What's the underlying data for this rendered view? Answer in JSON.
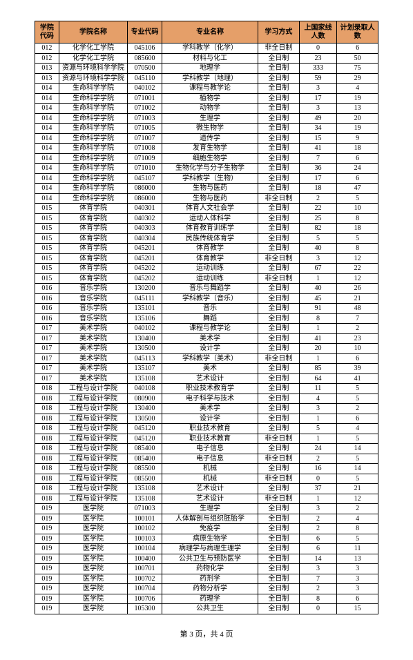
{
  "columns": [
    "学院代码",
    "学院名称",
    "专业代码",
    "专业名称",
    "学习方式",
    "上国家线人数",
    "计划录取人数"
  ],
  "rows": [
    [
      "012",
      "化学化工学院",
      "045106",
      "学科教学（化学）",
      "非全日制",
      "0",
      "6"
    ],
    [
      "012",
      "化学化工学院",
      "085600",
      "材料与化工",
      "全日制",
      "23",
      "50"
    ],
    [
      "013",
      "资源与环境科学学院",
      "070500",
      "地理学",
      "全日制",
      "333",
      "75"
    ],
    [
      "013",
      "资源与环境科学学院",
      "045110",
      "学科教学（地理）",
      "全日制",
      "59",
      "29"
    ],
    [
      "014",
      "生命科学学院",
      "040102",
      "课程与教学论",
      "全日制",
      "3",
      "4"
    ],
    [
      "014",
      "生命科学学院",
      "071001",
      "植物学",
      "全日制",
      "17",
      "19"
    ],
    [
      "014",
      "生命科学学院",
      "071002",
      "动物学",
      "全日制",
      "3",
      "13"
    ],
    [
      "014",
      "生命科学学院",
      "071003",
      "生理学",
      "全日制",
      "49",
      "20"
    ],
    [
      "014",
      "生命科学学院",
      "071005",
      "微生物学",
      "全日制",
      "34",
      "19"
    ],
    [
      "014",
      "生命科学学院",
      "071007",
      "遗传学",
      "全日制",
      "15",
      "9"
    ],
    [
      "014",
      "生命科学学院",
      "071008",
      "发育生物学",
      "全日制",
      "41",
      "18"
    ],
    [
      "014",
      "生命科学学院",
      "071009",
      "细胞生物学",
      "全日制",
      "7",
      "6"
    ],
    [
      "014",
      "生命科学学院",
      "071010",
      "生物化学与分子生物学",
      "全日制",
      "36",
      "24"
    ],
    [
      "014",
      "生命科学学院",
      "045107",
      "学科教学（生物）",
      "全日制",
      "17",
      "6"
    ],
    [
      "014",
      "生命科学学院",
      "086000",
      "生物与医药",
      "全日制",
      "18",
      "47"
    ],
    [
      "014",
      "生命科学学院",
      "086000",
      "生物与医药",
      "非全日制",
      "2",
      "5"
    ],
    [
      "015",
      "体育学院",
      "040301",
      "体育人文社会学",
      "全日制",
      "22",
      "10"
    ],
    [
      "015",
      "体育学院",
      "040302",
      "运动人体科学",
      "全日制",
      "25",
      "8"
    ],
    [
      "015",
      "体育学院",
      "040303",
      "体育教育训练学",
      "全日制",
      "82",
      "18"
    ],
    [
      "015",
      "体育学院",
      "040304",
      "民族传统体育学",
      "全日制",
      "5",
      "5"
    ],
    [
      "015",
      "体育学院",
      "045201",
      "体育教学",
      "全日制",
      "40",
      "8"
    ],
    [
      "015",
      "体育学院",
      "045201",
      "体育教学",
      "非全日制",
      "3",
      "12"
    ],
    [
      "015",
      "体育学院",
      "045202",
      "运动训练",
      "全日制",
      "67",
      "22"
    ],
    [
      "015",
      "体育学院",
      "045202",
      "运动训练",
      "非全日制",
      "1",
      "12"
    ],
    [
      "016",
      "音乐学院",
      "130200",
      "音乐与舞蹈学",
      "全日制",
      "40",
      "26"
    ],
    [
      "016",
      "音乐学院",
      "045111",
      "学科教学（音乐）",
      "全日制",
      "45",
      "21"
    ],
    [
      "016",
      "音乐学院",
      "135101",
      "音乐",
      "全日制",
      "91",
      "48"
    ],
    [
      "016",
      "音乐学院",
      "135106",
      "舞蹈",
      "全日制",
      "8",
      "7"
    ],
    [
      "017",
      "美术学院",
      "040102",
      "课程与教学论",
      "全日制",
      "1",
      "2"
    ],
    [
      "017",
      "美术学院",
      "130400",
      "美术学",
      "全日制",
      "41",
      "23"
    ],
    [
      "017",
      "美术学院",
      "130500",
      "设计学",
      "全日制",
      "20",
      "10"
    ],
    [
      "017",
      "美术学院",
      "045113",
      "学科教学（美术）",
      "非全日制",
      "1",
      "6"
    ],
    [
      "017",
      "美术学院",
      "135107",
      "美术",
      "全日制",
      "85",
      "39"
    ],
    [
      "017",
      "美术学院",
      "135108",
      "艺术设计",
      "全日制",
      "64",
      "41"
    ],
    [
      "018",
      "工程与设计学院",
      "040108",
      "职业技术教育学",
      "全日制",
      "11",
      "5"
    ],
    [
      "018",
      "工程与设计学院",
      "080900",
      "电子科学与技术",
      "全日制",
      "4",
      "5"
    ],
    [
      "018",
      "工程与设计学院",
      "130400",
      "美术学",
      "全日制",
      "3",
      "2"
    ],
    [
      "018",
      "工程与设计学院",
      "130500",
      "设计学",
      "全日制",
      "1",
      "6"
    ],
    [
      "018",
      "工程与设计学院",
      "045120",
      "职业技术教育",
      "全日制",
      "5",
      "4"
    ],
    [
      "018",
      "工程与设计学院",
      "045120",
      "职业技术教育",
      "非全日制",
      "1",
      "5"
    ],
    [
      "018",
      "工程与设计学院",
      "085400",
      "电子信息",
      "全日制",
      "24",
      "14"
    ],
    [
      "018",
      "工程与设计学院",
      "085400",
      "电子信息",
      "非全日制",
      "2",
      "5"
    ],
    [
      "018",
      "工程与设计学院",
      "085500",
      "机械",
      "全日制",
      "16",
      "14"
    ],
    [
      "018",
      "工程与设计学院",
      "085500",
      "机械",
      "非全日制",
      "0",
      "5"
    ],
    [
      "018",
      "工程与设计学院",
      "135108",
      "艺术设计",
      "全日制",
      "37",
      "21"
    ],
    [
      "018",
      "工程与设计学院",
      "135108",
      "艺术设计",
      "非全日制",
      "1",
      "12"
    ],
    [
      "019",
      "医学院",
      "071003",
      "生理学",
      "全日制",
      "3",
      "2"
    ],
    [
      "019",
      "医学院",
      "100101",
      "人体解剖与组织胚胎学",
      "全日制",
      "2",
      "4"
    ],
    [
      "019",
      "医学院",
      "100102",
      "免疫学",
      "全日制",
      "2",
      "8"
    ],
    [
      "019",
      "医学院",
      "100103",
      "病原生物学",
      "全日制",
      "6",
      "5"
    ],
    [
      "019",
      "医学院",
      "100104",
      "病理学与病理生理学",
      "全日制",
      "6",
      "11"
    ],
    [
      "019",
      "医学院",
      "100400",
      "公共卫生与预防医学",
      "全日制",
      "14",
      "13"
    ],
    [
      "019",
      "医学院",
      "100701",
      "药物化学",
      "全日制",
      "3",
      "3"
    ],
    [
      "019",
      "医学院",
      "100702",
      "药剂学",
      "全日制",
      "7",
      "3"
    ],
    [
      "019",
      "医学院",
      "100704",
      "药物分析学",
      "全日制",
      "2",
      "3"
    ],
    [
      "019",
      "医学院",
      "100706",
      "药理学",
      "全日制",
      "8",
      "6"
    ],
    [
      "019",
      "医学院",
      "105300",
      "公共卫生",
      "全日制",
      "0",
      "15"
    ]
  ],
  "footer": "第 3 页，共 4 页"
}
